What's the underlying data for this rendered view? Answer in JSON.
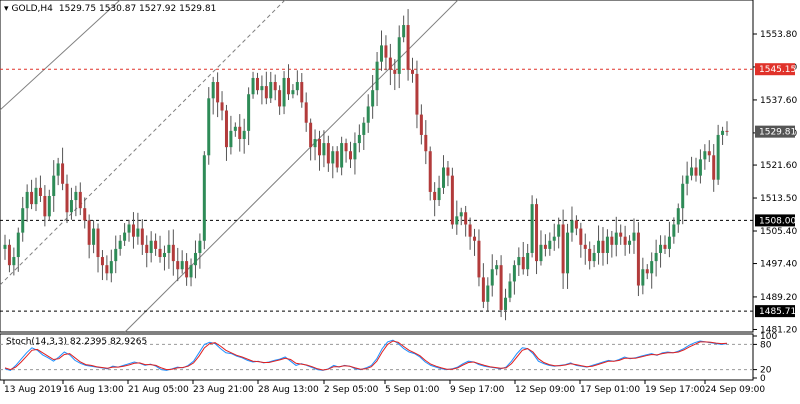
{
  "header": {
    "symbol_tf": "GOLD,H4",
    "ohlc": "1529.75 1530.87 1527.92 1529.81",
    "menu_icon": "triangle-down-icon"
  },
  "colors": {
    "bull": "#2e8b57",
    "bear": "#b23b3b",
    "resistance": "#e0322a",
    "support": "#000000",
    "trendline": "#808080",
    "stoch_k": "#1e90ff",
    "stoch_d": "#e02020",
    "tag_red": "#e0322a",
    "tag_black": "#000000",
    "tag_price": "#555555"
  },
  "chart_data": [
    {
      "type": "candlestick",
      "symbol": "GOLD",
      "timeframe": "H4",
      "y_ticks": [
        "1553.80",
        "1545.70",
        "1537.60",
        "1529.50",
        "1521.60",
        "1513.50",
        "1505.40",
        "1497.40",
        "1489.20",
        "1481.20"
      ],
      "ylim": [
        1479.5,
        1559.5
      ],
      "x_ticks": [
        "13 Aug 2019",
        "16 Aug 13:00",
        "21 Aug 05:00",
        "23 Aug 21:00",
        "28 Aug 13:00",
        "2 Sep 05:00",
        "5 Sep 01:00",
        "9 Sep 17:00",
        "12 Sep 09:00",
        "17 Sep 01:00",
        "19 Sep 17:00",
        "24 Sep 09:00"
      ],
      "horizontal_lines": [
        {
          "price": 1545.15,
          "label": "1545.15",
          "style": "dashed",
          "color": "red"
        },
        {
          "price": 1508.0,
          "label": "1508.00",
          "style": "dashed",
          "color": "black"
        },
        {
          "price": 1485.71,
          "label": "1485.71",
          "style": "dashed",
          "color": "black"
        }
      ],
      "current_price": {
        "price": 1529.81,
        "label": "1529.81"
      },
      "closes": [
        1502,
        1497,
        1499,
        1505,
        1511,
        1515,
        1512,
        1516,
        1514,
        1509,
        1514,
        1519,
        1522,
        1517,
        1510,
        1513,
        1515,
        1511,
        1508,
        1502,
        1506,
        1499,
        1497,
        1495,
        1498,
        1501,
        1503,
        1505,
        1507,
        1504,
        1506,
        1502,
        1500,
        1503,
        1501,
        1499,
        1500,
        1502,
        1498,
        1496,
        1498,
        1494,
        1497,
        1500,
        1503,
        1524,
        1538,
        1542,
        1537,
        1535,
        1526,
        1530,
        1531,
        1528,
        1530,
        1539,
        1543,
        1540,
        1541,
        1538,
        1542,
        1540,
        1536,
        1543,
        1539,
        1540,
        1542,
        1537,
        1532,
        1526,
        1528,
        1524,
        1527,
        1522,
        1525,
        1521,
        1527,
        1525,
        1523,
        1527,
        1529,
        1532,
        1536,
        1540,
        1547,
        1551,
        1548,
        1545,
        1544,
        1553,
        1556,
        1545,
        1544,
        1534,
        1529,
        1525,
        1515,
        1513,
        1516,
        1521,
        1519,
        1507,
        1509,
        1510,
        1507,
        1504,
        1503,
        1494,
        1488,
        1492,
        1496,
        1497,
        1486,
        1489,
        1493,
        1497,
        1499,
        1496,
        1500,
        1512,
        1498,
        1502,
        1501,
        1503,
        1504,
        1507,
        1495,
        1505,
        1508,
        1506,
        1502,
        1501,
        1498,
        1500,
        1503,
        1500,
        1504,
        1502,
        1505,
        1504,
        1502,
        1503,
        1505,
        1492,
        1496,
        1495,
        1498,
        1500,
        1502,
        1501,
        1504,
        1507,
        1511,
        1517,
        1519,
        1521,
        1519,
        1523,
        1525,
        1524,
        1518,
        1529,
        1530,
        1529.81
      ],
      "series": [
        {
          "name": "",
          "type": "ohlc_candles"
        }
      ]
    },
    {
      "type": "line",
      "indicator": "Stoch(14,3,3)",
      "label": "Stoch(14,3,3) 82.2395 82.9265",
      "y_ticks": [
        "100",
        "80",
        "20",
        "0"
      ],
      "ylim": [
        0,
        100
      ],
      "series": [
        {
          "name": "",
          "role": "main",
          "values": [
            22,
            18,
            30,
            45,
            60,
            72,
            66,
            55,
            48,
            40,
            50,
            62,
            55,
            42,
            35,
            30,
            28,
            26,
            24,
            22,
            28,
            26,
            30,
            34,
            38,
            35,
            30,
            33,
            28,
            20,
            18,
            22,
            26,
            24,
            30,
            40,
            60,
            80,
            85,
            82,
            70,
            60,
            58,
            52,
            48,
            42,
            38,
            40,
            36,
            38,
            42,
            45,
            50,
            40,
            30,
            34,
            30,
            25,
            20,
            18,
            22,
            30,
            26,
            30,
            28,
            22,
            20,
            24,
            30,
            46,
            70,
            86,
            90,
            82,
            70,
            62,
            58,
            50,
            38,
            30,
            26,
            22,
            20,
            22,
            26,
            34,
            40,
            38,
            32,
            28,
            26,
            24,
            22,
            26,
            40,
            58,
            72,
            70,
            58,
            40,
            34,
            30,
            28,
            30,
            32,
            36,
            30,
            28,
            26,
            30,
            34,
            38,
            42,
            40,
            44,
            50,
            46,
            48,
            52,
            55,
            58,
            54,
            60,
            62,
            60,
            64,
            70,
            78,
            84,
            88,
            86,
            84,
            82,
            80,
            82
          ]
        },
        {
          "name": "",
          "role": "signal",
          "values": [
            24,
            20,
            26,
            38,
            52,
            66,
            68,
            60,
            52,
            44,
            46,
            56,
            58,
            48,
            38,
            32,
            30,
            27,
            25,
            23,
            26,
            26,
            28,
            31,
            35,
            36,
            32,
            32,
            30,
            24,
            20,
            21,
            24,
            25,
            28,
            36,
            52,
            72,
            82,
            84,
            76,
            66,
            60,
            54,
            50,
            45,
            40,
            39,
            37,
            37,
            40,
            43,
            47,
            44,
            35,
            33,
            31,
            27,
            22,
            19,
            21,
            27,
            27,
            29,
            28,
            24,
            21,
            22,
            27,
            40,
            62,
            80,
            88,
            85,
            75,
            66,
            60,
            53,
            42,
            33,
            28,
            24,
            21,
            21,
            24,
            31,
            37,
            38,
            34,
            30,
            27,
            25,
            23,
            24,
            34,
            50,
            66,
            70,
            62,
            46,
            37,
            32,
            29,
            29,
            31,
            34,
            32,
            29,
            27,
            28,
            32,
            36,
            40,
            40,
            42,
            47,
            47,
            47,
            50,
            53,
            56,
            55,
            58,
            60,
            60,
            62,
            67,
            74,
            80,
            86,
            86,
            85,
            83,
            82,
            82.9
          ]
        }
      ]
    }
  ],
  "tags": {
    "resistance": "1545.15",
    "current": "1529.81",
    "support1": "1508.00",
    "support2": "1485.71"
  },
  "stoch_label": "Stoch(14,3,3) 82.2395 82.9265"
}
